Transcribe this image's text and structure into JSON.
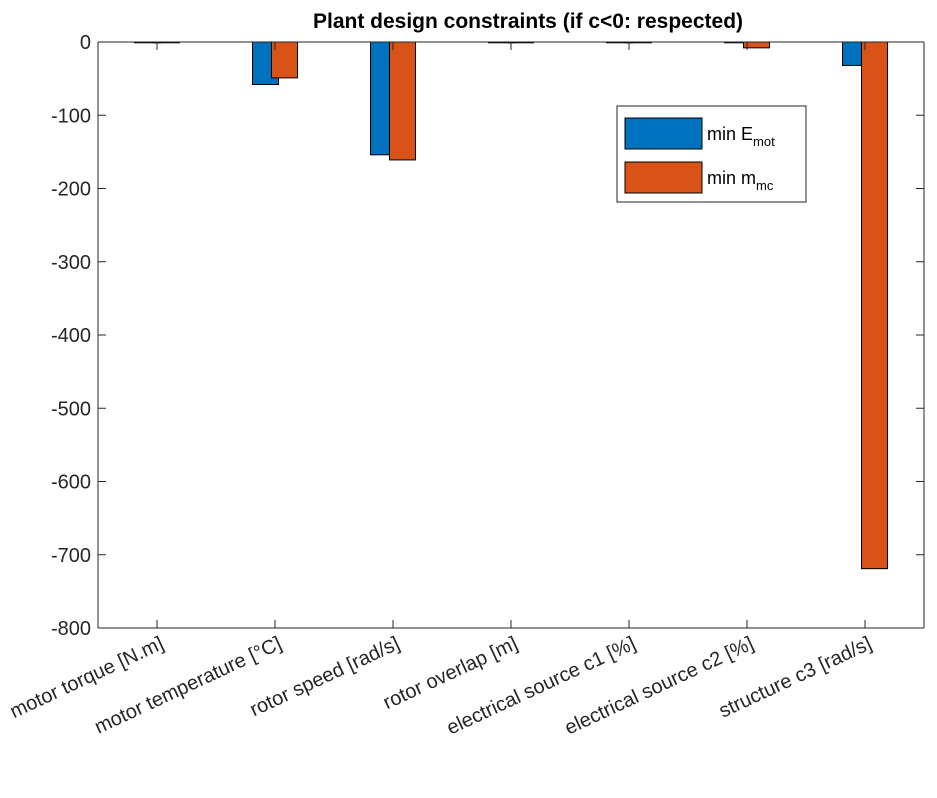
{
  "chart_data": {
    "type": "bar",
    "title": "Plant design constraints (if c<0: respected)",
    "xlabel": "",
    "ylabel": "",
    "categories": [
      "motor torque [N.m]",
      "motor temperature [°C]",
      "rotor speed [rad/s]",
      "rotor overlap [m]",
      "electrical source c1 [%]",
      "electrical source c2 [%]",
      "structure c3 [rad/s]"
    ],
    "series": [
      {
        "name_main": "min E",
        "name_sub": "mot",
        "color": "#0072BD",
        "values": [
          -1,
          -58,
          -154,
          -0.5,
          -1,
          -1,
          -32
        ]
      },
      {
        "name_main": "min m",
        "name_sub": "mc",
        "color": "#D95319",
        "values": [
          -1,
          -49,
          -161,
          -0.5,
          -1,
          -8,
          -719
        ]
      }
    ],
    "ylim": [
      -800,
      0
    ],
    "yticks": [
      0,
      -100,
      -200,
      -300,
      -400,
      -500,
      -600,
      -700,
      -800
    ],
    "ytick_labels": [
      "0",
      "-100",
      "-200",
      "-300",
      "-400",
      "-500",
      "-600",
      "-700",
      "-800"
    ],
    "grid": false,
    "legend_position": "top-right"
  }
}
